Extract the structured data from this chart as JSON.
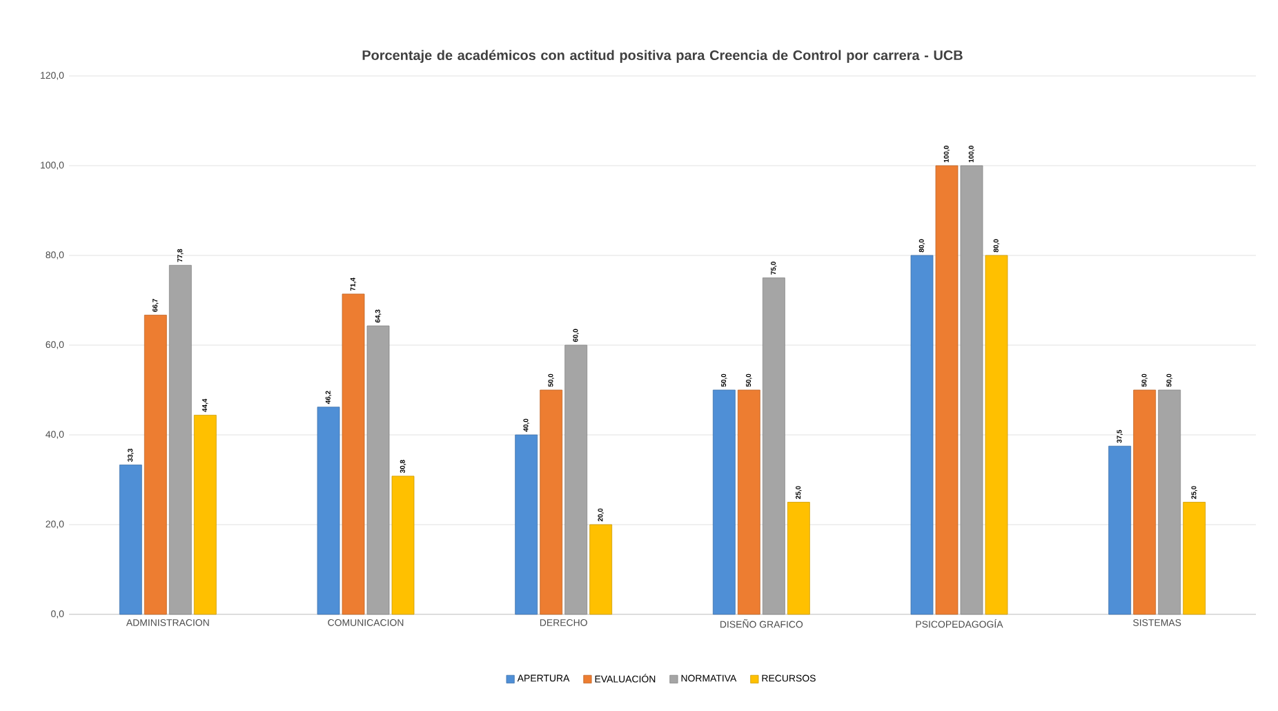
{
  "chart_data": {
    "type": "bar",
    "title": "Porcentaje de académicos con actitud positiva para Creencia de Control por carrera - UCB",
    "categories": [
      "ADMINISTRACION",
      "COMUNICACION",
      "DERECHO",
      "DISEÑO GRAFICO",
      "PSICOPEDAGOGÍA",
      "SISTEMAS"
    ],
    "series": [
      {
        "name": "APERTURA",
        "color": "#4f8fd6",
        "values": [
          33.3,
          46.2,
          40.0,
          50.0,
          80.0,
          37.5
        ],
        "value_labels": [
          "33,3",
          "46,2",
          "40,0",
          "50,0",
          "80,0",
          "37,5"
        ]
      },
      {
        "name": "EVALUACIÓN",
        "color": "#ed7d31",
        "values": [
          66.7,
          71.4,
          50.0,
          50.0,
          100.0,
          50.0
        ],
        "value_labels": [
          "66,7",
          "71,4",
          "50,0",
          "50,0",
          "100,0",
          "50,0"
        ]
      },
      {
        "name": "NORMATIVA",
        "color": "#a5a5a5",
        "values": [
          77.8,
          64.3,
          60.0,
          75.0,
          100.0,
          50.0
        ],
        "value_labels": [
          "77,8",
          "64,3",
          "60,0",
          "75,0",
          "100,0",
          "50,0"
        ]
      },
      {
        "name": "RECURSOS",
        "color": "#ffc000",
        "values": [
          44.4,
          30.8,
          20.0,
          25.0,
          80.0,
          25.0
        ],
        "value_labels": [
          "44,4",
          "30,8",
          "20,0",
          "25,0",
          "80,0",
          "25,0"
        ]
      }
    ],
    "ylim": [
      0,
      120
    ],
    "yticks": [
      {
        "value": 0,
        "label": "0,0"
      },
      {
        "value": 20,
        "label": "20,0"
      },
      {
        "value": 40,
        "label": "40,0"
      },
      {
        "value": 60,
        "label": "60,0"
      },
      {
        "value": 80,
        "label": "80,0"
      },
      {
        "value": 100,
        "label": "100,0"
      },
      {
        "value": 120,
        "label": "120,0"
      }
    ],
    "grid": "y",
    "legend": "bottom"
  }
}
